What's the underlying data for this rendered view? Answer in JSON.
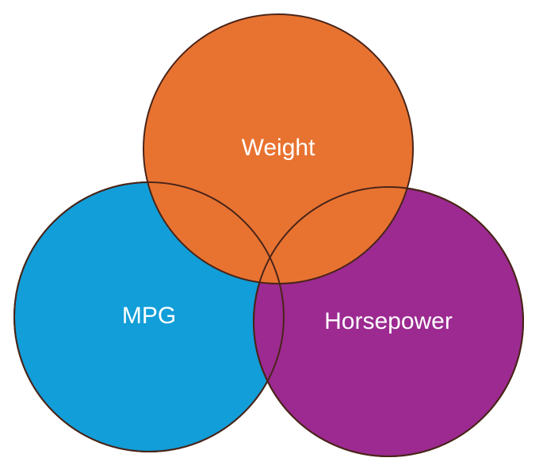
{
  "diagram": {
    "type": "three-circle overlap diagram",
    "sets": [
      {
        "id": "mpg",
        "label": "MPG",
        "color": "#129ED8"
      },
      {
        "id": "horsepower",
        "label": "Horsepower",
        "color": "#9C2A91"
      },
      {
        "id": "weight",
        "label": "Weight",
        "color": "#E87331"
      }
    ],
    "outline_color": "#5A2A1A",
    "background": "#FFFFFF"
  }
}
